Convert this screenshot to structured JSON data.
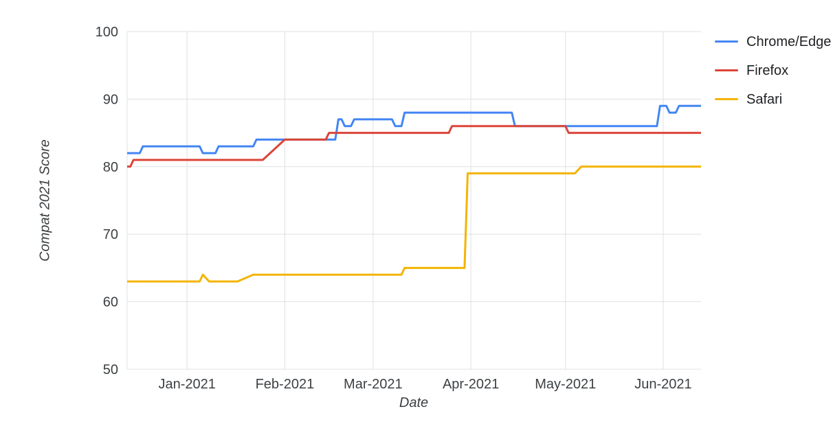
{
  "chart_data": {
    "type": "line",
    "title": "",
    "xlabel": "Date",
    "ylabel": "Compat 2021 Score",
    "ylim": [
      50,
      100
    ],
    "yticks": [
      50,
      60,
      70,
      80,
      90,
      100
    ],
    "xlim": [
      "2020-12-13",
      "2021-06-13"
    ],
    "xticks": [
      {
        "date": "2021-01-01",
        "label": "Jan-2021"
      },
      {
        "date": "2021-02-01",
        "label": "Feb-2021"
      },
      {
        "date": "2021-03-01",
        "label": "Mar-2021"
      },
      {
        "date": "2021-04-01",
        "label": "Apr-2021"
      },
      {
        "date": "2021-05-01",
        "label": "May-2021"
      },
      {
        "date": "2021-06-01",
        "label": "Jun-2021"
      }
    ],
    "grid": true,
    "grid_color": "#dde0e3",
    "text_color": "#3c4043",
    "legend_position": "right",
    "series": [
      {
        "name": "Chrome/Edge",
        "color": "#4285f4",
        "points": [
          [
            "2020-12-13",
            82
          ],
          [
            "2020-12-17",
            82
          ],
          [
            "2020-12-18",
            83
          ],
          [
            "2021-01-05",
            83
          ],
          [
            "2021-01-06",
            82
          ],
          [
            "2021-01-10",
            82
          ],
          [
            "2021-01-11",
            83
          ],
          [
            "2021-01-22",
            83
          ],
          [
            "2021-01-23",
            84
          ],
          [
            "2021-02-17",
            84
          ],
          [
            "2021-02-18",
            87
          ],
          [
            "2021-02-19",
            87
          ],
          [
            "2021-02-20",
            86
          ],
          [
            "2021-02-22",
            86
          ],
          [
            "2021-02-23",
            87
          ],
          [
            "2021-03-07",
            87
          ],
          [
            "2021-03-08",
            86
          ],
          [
            "2021-03-10",
            86
          ],
          [
            "2021-03-11",
            88
          ],
          [
            "2021-04-14",
            88
          ],
          [
            "2021-04-15",
            86
          ],
          [
            "2021-05-30",
            86
          ],
          [
            "2021-05-31",
            89
          ],
          [
            "2021-06-02",
            89
          ],
          [
            "2021-06-03",
            88
          ],
          [
            "2021-06-05",
            88
          ],
          [
            "2021-06-06",
            89
          ],
          [
            "2021-06-13",
            89
          ]
        ]
      },
      {
        "name": "Firefox",
        "color": "#db4437",
        "points": [
          [
            "2020-12-13",
            80
          ],
          [
            "2020-12-14",
            80
          ],
          [
            "2020-12-15",
            81
          ],
          [
            "2021-01-25",
            81
          ],
          [
            "2021-02-01",
            84
          ],
          [
            "2021-02-14",
            84
          ],
          [
            "2021-02-15",
            85
          ],
          [
            "2021-03-25",
            85
          ],
          [
            "2021-03-26",
            86
          ],
          [
            "2021-05-01",
            86
          ],
          [
            "2021-05-02",
            85
          ],
          [
            "2021-06-13",
            85
          ]
        ]
      },
      {
        "name": "Safari",
        "color": "#f4b400",
        "points": [
          [
            "2020-12-13",
            63
          ],
          [
            "2021-01-05",
            63
          ],
          [
            "2021-01-06",
            64
          ],
          [
            "2021-01-08",
            63
          ],
          [
            "2021-01-17",
            63
          ],
          [
            "2021-01-22",
            64
          ],
          [
            "2021-03-10",
            64
          ],
          [
            "2021-03-11",
            65
          ],
          [
            "2021-03-30",
            65
          ],
          [
            "2021-03-31",
            79
          ],
          [
            "2021-05-04",
            79
          ],
          [
            "2021-05-06",
            80
          ],
          [
            "2021-06-13",
            80
          ]
        ]
      }
    ]
  }
}
